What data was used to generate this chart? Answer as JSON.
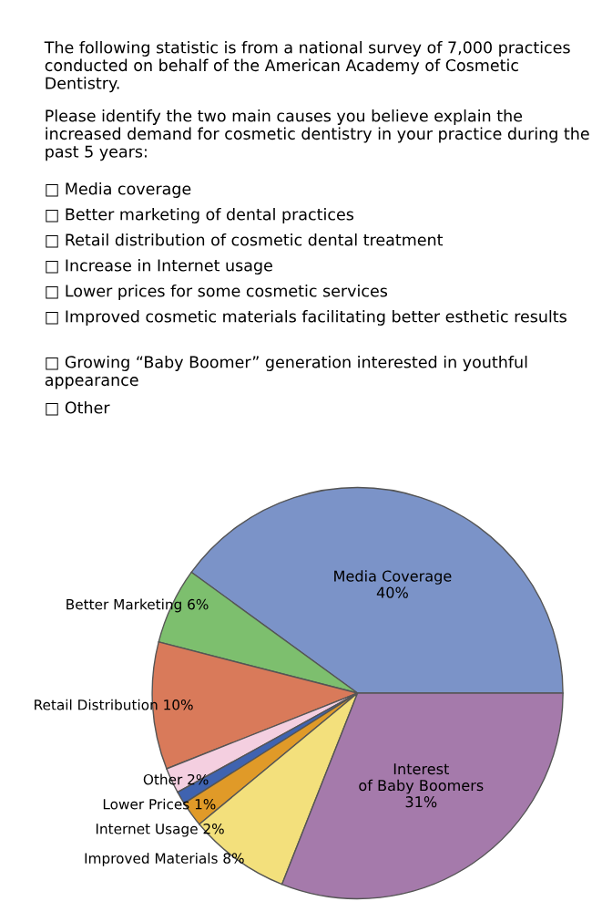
{
  "chart_data": {
    "type": "pie",
    "title": "The following statistic is from a national survey of 7,000 practices conducted on behalf of the American Academy of Cosmetic Dentistry.",
    "subtitle": "Please identify the two main causes you believe explain the increased demand for cosmetic dentistry in your practice during the past 5 years:",
    "annotations": [
      "□ Media coverage",
      "□ Better marketing of dental practices",
      "□ Retail distribution of cosmetic dental treatment",
      "□ Increase in Internet usage",
      "□ Lower prices for some cosmetic services",
      "□ Improved cosmetic materials facilitating better esthetic results",
      "□ Growing “Baby Boomer” generation interested in youthful appearance",
      "□ Other"
    ],
    "categories": [
      "Media Coverage",
      "Better Marketing",
      "Retail Distribution",
      "Other",
      "Lower Prices",
      "Internet Usage",
      "Improved Materials",
      "Interest of Baby Boomers"
    ],
    "values": [
      40,
      6,
      10,
      2,
      1,
      2,
      8,
      31
    ],
    "colors": [
      "#7b93c8",
      "#7dbf6e",
      "#d97a5a",
      "#f4cfe0",
      "#3f63b0",
      "#e09a28",
      "#f3e07c",
      "#a57aab"
    ],
    "value_labels": [
      "40%",
      "6%",
      "10%",
      "2%",
      "1%",
      "2%",
      "8%",
      "31%"
    ]
  }
}
